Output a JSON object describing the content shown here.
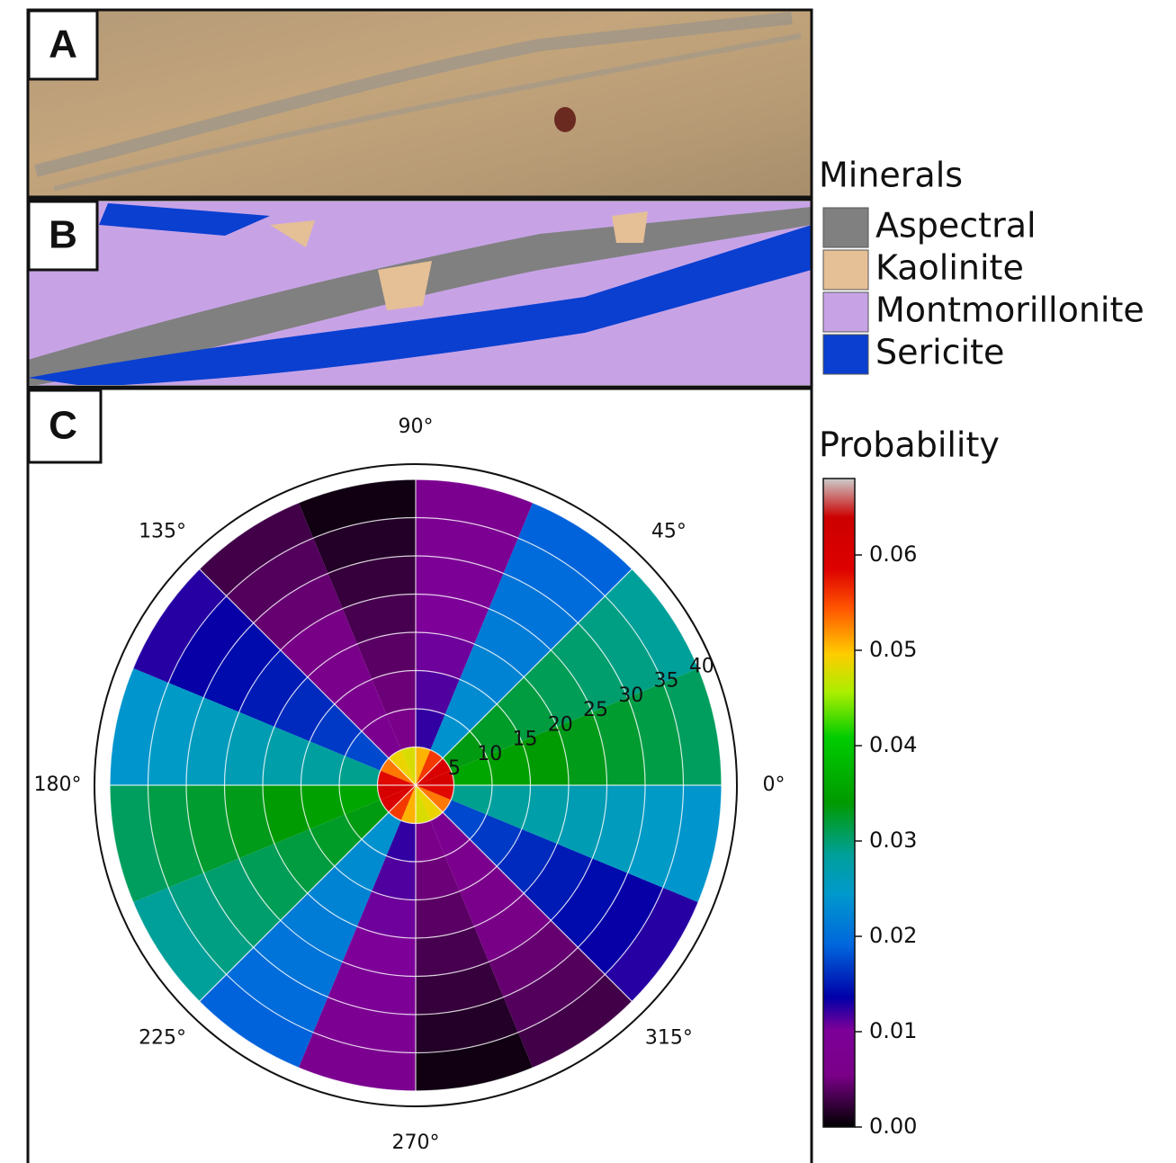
{
  "panels": {
    "a": {
      "label": "A"
    },
    "b": {
      "label": "B"
    },
    "c": {
      "label": "C"
    }
  },
  "minerals_legend": {
    "title": "Minerals",
    "items": [
      {
        "name": "Aspectral",
        "color": "#808080"
      },
      {
        "name": "Kaolinite",
        "color": "#e5bf96"
      },
      {
        "name": "Montmorillonite",
        "color": "#c7a3e6"
      },
      {
        "name": "Sericite",
        "color": "#0a3fd0"
      }
    ]
  },
  "probability_colorbar": {
    "title": "Probability",
    "ticks": [
      "0.00",
      "0.01",
      "0.02",
      "0.03",
      "0.04",
      "0.05",
      "0.06"
    ]
  },
  "polar": {
    "angle_labels": [
      "0°",
      "45°",
      "90°",
      "135°",
      "180°",
      "225°",
      "270°",
      "315°"
    ],
    "radial_labels": [
      "5",
      "10",
      "15",
      "20",
      "25",
      "30",
      "35",
      "40"
    ]
  }
}
